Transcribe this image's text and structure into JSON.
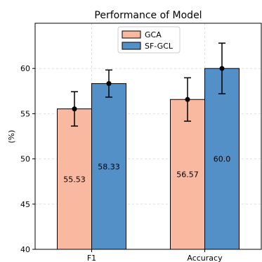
{
  "chart_data": {
    "type": "bar",
    "title": "Performance of Model",
    "xlabel": "",
    "ylabel": "(%)",
    "ylim": [
      40,
      65
    ],
    "yticks": [
      40,
      45,
      50,
      55,
      60
    ],
    "categories": [
      "F1",
      "Accuracy"
    ],
    "grid": true,
    "legend_position": "top-center",
    "series": [
      {
        "name": "GCA",
        "color": "#f9b8a0",
        "values": [
          55.53,
          56.57
        ],
        "errors": [
          1.9,
          2.4
        ],
        "labels": [
          "55.53",
          "56.57"
        ]
      },
      {
        "name": "SF-GCL",
        "color": "#5490c8",
        "values": [
          58.33,
          60.0
        ],
        "errors": [
          1.5,
          2.8
        ],
        "labels": [
          "58.33",
          "60.0"
        ]
      }
    ]
  }
}
